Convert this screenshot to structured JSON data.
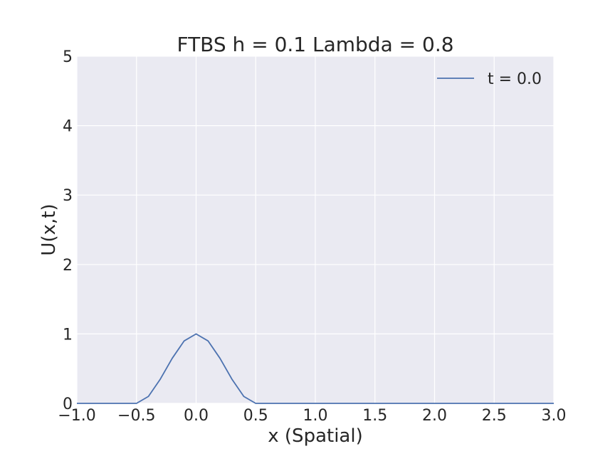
{
  "chart_data": {
    "type": "line",
    "title": "FTBS h = 0.1 Lambda = 0.8",
    "xlabel": "x (Spatial)",
    "ylabel": "U(x,t)",
    "xlim": [
      -1.0,
      3.0
    ],
    "ylim": [
      0,
      5
    ],
    "xticks": [
      -1.0,
      -0.5,
      0.0,
      0.5,
      1.0,
      1.5,
      2.0,
      2.5,
      3.0
    ],
    "xtick_labels": [
      "−1.0",
      "−0.5",
      "0.0",
      "0.5",
      "1.0",
      "1.5",
      "2.0",
      "2.5",
      "3.0"
    ],
    "yticks": [
      0,
      1,
      2,
      3,
      4,
      5
    ],
    "ytick_labels": [
      "0",
      "1",
      "2",
      "3",
      "4",
      "5"
    ],
    "grid": true,
    "legend_position": "top-right",
    "background_color": "#eaeaf2",
    "grid_color": "#ffffff",
    "series": [
      {
        "name": "t = 0.0",
        "color": "#4c72b0",
        "x": [
          -1.0,
          -0.9,
          -0.8,
          -0.7,
          -0.6,
          -0.5,
          -0.4,
          -0.3,
          -0.2,
          -0.1,
          0.0,
          0.1,
          0.2,
          0.3,
          0.4,
          0.5,
          0.6,
          0.7,
          0.8,
          0.9,
          1.0,
          1.1,
          1.2,
          1.3,
          1.4,
          1.5,
          1.6,
          1.7,
          1.8,
          1.9,
          2.0,
          2.1,
          2.2,
          2.3,
          2.4,
          2.5,
          2.6,
          2.7,
          2.8,
          2.9,
          3.0
        ],
        "y": [
          0,
          0,
          0,
          0,
          0,
          0,
          0.1,
          0.35,
          0.65,
          0.9,
          1.0,
          0.9,
          0.65,
          0.35,
          0.1,
          0,
          0,
          0,
          0,
          0,
          0,
          0,
          0,
          0,
          0,
          0,
          0,
          0,
          0,
          0,
          0,
          0,
          0,
          0,
          0,
          0,
          0,
          0,
          0,
          0,
          0
        ]
      }
    ]
  }
}
